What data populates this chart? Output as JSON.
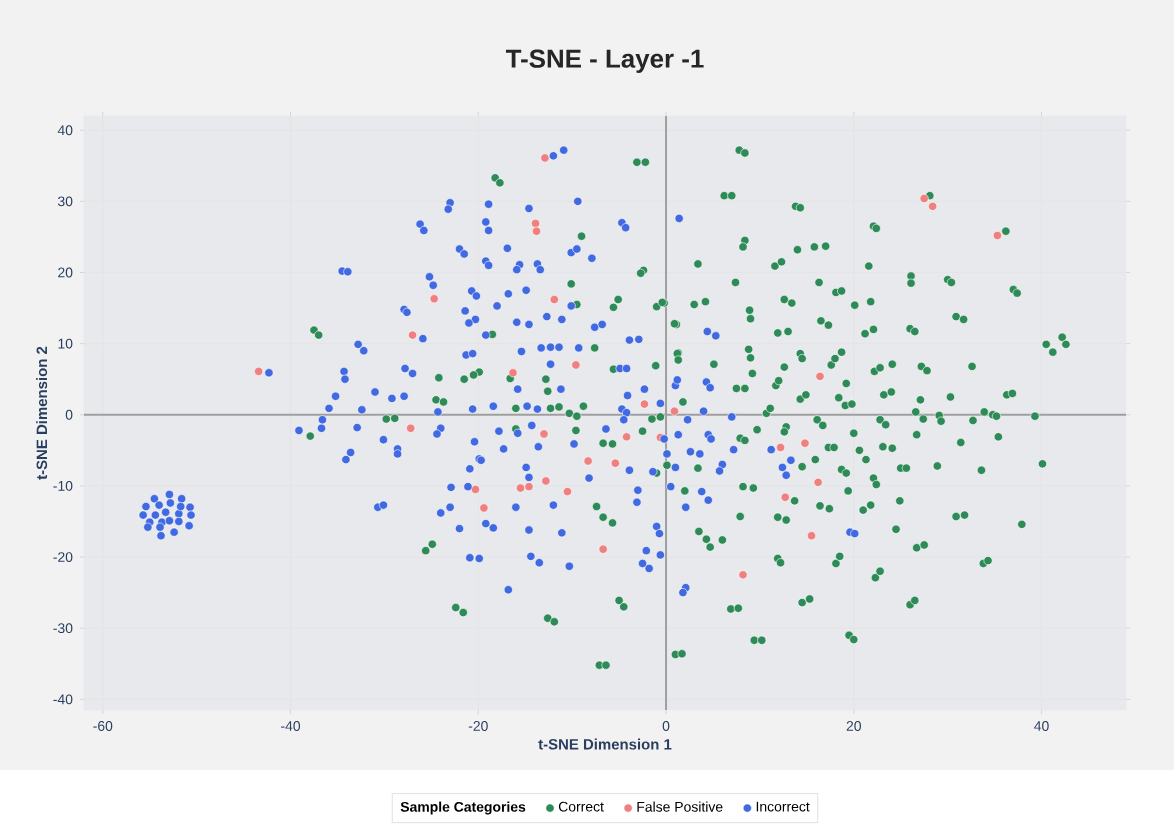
{
  "chart_data": {
    "type": "scatter",
    "title": "T-SNE - Layer -1",
    "xlabel": "t-SNE Dimension 1",
    "ylabel": "t-SNE Dimension 2",
    "legend_title": "Sample Categories",
    "xlim": [
      -62,
      49
    ],
    "ylim": [
      -41.5,
      42
    ],
    "xticks": [
      -60,
      -40,
      -20,
      0,
      20,
      40
    ],
    "yticks": [
      -40,
      -30,
      -20,
      -10,
      0,
      10,
      20,
      30,
      40
    ],
    "grid": true,
    "legend": "bottom",
    "marker": "circle",
    "series": [
      {
        "name": "Correct",
        "color": "#2e8b57",
        "x": [
          -18.2,
          -17.7,
          -3.1,
          -2.2,
          -9,
          -10.1,
          -9.5,
          -2.4,
          -2.7,
          -5.1,
          -5.6,
          -0.2,
          -1,
          1.1,
          -37.5,
          -37,
          -18.5,
          -7.6,
          -1.1,
          1.3,
          -19.9,
          -20.5,
          -21.5,
          -24.2,
          -16.6,
          -12.8,
          -12.6,
          -8.8,
          -10.3,
          -12.3,
          -11.4,
          -16,
          -24.5,
          -23.7,
          -5.6,
          -1.5,
          -0.6,
          -29.8,
          -28.9,
          -9.5,
          7.8,
          8.4,
          6.2,
          7,
          13.8,
          14.3,
          22.1,
          22.4,
          28.1,
          36.2,
          8.4,
          8.2,
          3.4,
          11.6,
          12.3,
          14,
          15.8,
          17,
          21.6,
          7.4,
          16.3,
          18.1,
          18.7,
          26.1,
          26.1,
          30,
          30.4,
          37,
          37.4,
          -0.4,
          3,
          4.2,
          12.6,
          13.4,
          20.1,
          21.8,
          0.9,
          8.9,
          9,
          11.9,
          13,
          16.5,
          17.3,
          21.2,
          22.1,
          26,
          26.5,
          30.9,
          31.7,
          40.5,
          42.2,
          42.6,
          41.2,
          1.2,
          1.3,
          5.1,
          8.8,
          9,
          9.2,
          12.6,
          14.3,
          14.5,
          17.6,
          18,
          18.7,
          19.2,
          22.2,
          22.8,
          24.1,
          27.2,
          27.8,
          32.6,
          11.7,
          12,
          7.5,
          8.4,
          14.3,
          14.9,
          18.4,
          19.1,
          19.8,
          23.2,
          24,
          27.1,
          30.3,
          26.6,
          27.4,
          33.9,
          34.8,
          36.3,
          36.9,
          39.3,
          1.8,
          10.7,
          11.1,
          16.1,
          22.8,
          29.1,
          32.7,
          -37.9,
          -25.6,
          -24.9,
          -22.4,
          -21.6,
          -12.6,
          -11.9,
          -7.1,
          -6.4,
          -5,
          -4.5,
          -7.4,
          -6.7,
          -5.7,
          -6.7,
          -5.7,
          -16,
          -9.6,
          -1,
          0.1,
          1,
          -2.5,
          16.7,
          23.4,
          29.3,
          35.2,
          7.9,
          8.4,
          9.7,
          12.8,
          12.6,
          15.9,
          17.3,
          17.9,
          20.6,
          21.3,
          20,
          23.1,
          24.1,
          26.7,
          31.4,
          35.4,
          14.5,
          18.7,
          19.2,
          22.1,
          22.4,
          25,
          25.6,
          28.9,
          33.6,
          40.1,
          2,
          3.4,
          8.2,
          9.3,
          19.4,
          16.4,
          17.4,
          21,
          21.8,
          24.9,
          7.9,
          11.9,
          12.8,
          13.7,
          24.5,
          30.9,
          31.8,
          37.9,
          3.5,
          4.3,
          4.7,
          6,
          26.7,
          27.5,
          11.9,
          12.2,
          18.1,
          18.5,
          22.3,
          22.8,
          33.8,
          34.3,
          6.9,
          7.7,
          14.5,
          15.3,
          26,
          26.5,
          9.4,
          10.2,
          19.5,
          20,
          1.7
        ],
        "values": [
          33.3,
          32.6,
          35.5,
          35.5,
          25.1,
          18.4,
          15.5,
          20.3,
          19.9,
          16.2,
          15.1,
          15.7,
          15.2,
          12.7,
          11.9,
          11.2,
          11.3,
          9.4,
          6.9,
          8.7,
          6,
          5.6,
          5,
          5.2,
          5.1,
          5,
          3.3,
          1.2,
          0.2,
          0.9,
          1.1,
          0.9,
          2.1,
          1.8,
          6.4,
          -0.6,
          -0.3,
          -0.6,
          -0.5,
          -0.2,
          37.2,
          36.8,
          30.8,
          30.8,
          29.3,
          29.1,
          26.5,
          26.2,
          30.8,
          25.8,
          24.5,
          23.6,
          21.2,
          20.9,
          21.5,
          23.2,
          23.6,
          23.7,
          20.9,
          18.6,
          18.6,
          17.2,
          17.4,
          19.5,
          18.5,
          19,
          18.6,
          17.6,
          17.1,
          15.8,
          15.5,
          15.9,
          16.2,
          15.7,
          15.4,
          15.9,
          12.8,
          14.7,
          13.5,
          11.5,
          11.7,
          13.2,
          12.6,
          11.4,
          12,
          12.1,
          11.7,
          13.8,
          13.4,
          9.9,
          10.9,
          9.9,
          8.8,
          8.6,
          7.7,
          7.1,
          9.2,
          8,
          5.8,
          6.7,
          8.6,
          7.9,
          7,
          7.9,
          8.8,
          4.4,
          6.1,
          6.6,
          7.1,
          6.8,
          6.2,
          6.8,
          4.1,
          4.8,
          3.7,
          3.7,
          2.2,
          2.8,
          2.4,
          1.3,
          1.5,
          2.8,
          3.2,
          2.1,
          2.5,
          0.4,
          -0.6,
          0.4,
          0,
          2.8,
          3,
          -0.2,
          1.8,
          0.2,
          0.9,
          -0.7,
          -0.7,
          -0.1,
          -0.8,
          -3,
          -19.1,
          -18.2,
          -27.1,
          -27.8,
          -28.6,
          -29.1,
          -35.2,
          -35.2,
          -26.1,
          -27,
          -12.9,
          -14.4,
          -15.2,
          -4,
          -4.1,
          -2,
          -2.2,
          -8.2,
          -7.1,
          -33.7,
          -2.3,
          -1.5,
          -1.4,
          -0.9,
          -0.2,
          -3.3,
          -3.6,
          -2.1,
          -1.7,
          -2.4,
          -6.3,
          -4.6,
          -4.6,
          -5,
          -6.3,
          -2.6,
          -4.5,
          -4.7,
          -2.8,
          -3.9,
          -3.1,
          -7.3,
          -7.7,
          -8.2,
          -8.9,
          -9.8,
          -7.5,
          -7.5,
          -7.2,
          -7.8,
          -6.9,
          -10.7,
          -7.5,
          -10.1,
          -10.3,
          -10.7,
          -12.8,
          -13.2,
          -13.4,
          -12.7,
          -12.1,
          -14.3,
          -14.4,
          -14.8,
          -12.1,
          -16.1,
          -14.3,
          -14.1,
          -15.4,
          -16.4,
          -17.5,
          -18.6,
          -17.6,
          -18.7,
          -18.3,
          -20.2,
          -20.8,
          -20.9,
          -19.9,
          -22.9,
          -22,
          -20.9,
          -20.5,
          -27.3,
          -27.2,
          -26.4,
          -25.9,
          -26.7,
          -26.1,
          -31.7,
          -31.7,
          -31,
          -31.6,
          -33.6
        ]
      },
      {
        "name": "False Positive",
        "color": "#f08080",
        "x": [
          -12.9,
          -13.9,
          -13.8,
          -24.7,
          -11.9,
          -27,
          -16.3,
          -9.6,
          -2.3,
          0.9,
          -43.4,
          -27.2,
          27.5,
          28.4,
          35.3,
          16.4,
          -13,
          -8.3,
          -5.4,
          -4.2,
          -12.8,
          -14.6,
          -15.5,
          -10.5,
          -20.3,
          -19.4,
          -6.7,
          -0.6,
          14.8,
          12.2,
          16.2,
          12.7,
          15.5,
          8.2
        ],
        "values": [
          36.1,
          26.9,
          25.8,
          16.3,
          16.2,
          11.2,
          5.9,
          7,
          1.5,
          0.5,
          6.1,
          -1.9,
          30.4,
          29.3,
          25.2,
          5.4,
          -2.7,
          -6.5,
          -6.8,
          -3.1,
          -9.3,
          -10.1,
          -10.3,
          -10.8,
          -10.5,
          -13.1,
          -18.9,
          -3.2,
          -4,
          -4.6,
          -9.5,
          -11.6,
          -17,
          -22.5
        ]
      },
      {
        "name": "Incorrect",
        "color": "#4169e1",
        "x": [
          -12,
          -10.9,
          -23,
          -23.2,
          -18.9,
          -14.6,
          -9.4,
          -26.2,
          -25.8,
          -19.2,
          -18.9,
          -4.7,
          -4.3,
          1.4,
          -22,
          -21.5,
          -16.9,
          -10.1,
          -9.5,
          -7.9,
          -19.2,
          -18.9,
          -15.6,
          -15.9,
          -13.7,
          -13.4,
          -34.5,
          -33.9,
          -25.2,
          -24.8,
          -20.7,
          -20.2,
          -16.8,
          -14.9,
          -18,
          -10.1,
          -21.4,
          -20.3,
          -21,
          -27.9,
          -27.6,
          -15.9,
          -14.6,
          -12.7,
          -11.1,
          -7.6,
          -6.8,
          -19.2,
          -25.9,
          -32.8,
          -32.2,
          -3.9,
          -2.9,
          -21.3,
          -20.6,
          -15.4,
          -13.3,
          -12.3,
          -11.4,
          -9.3,
          -27.8,
          -27,
          -34.3,
          -34.2,
          -42.3,
          -12.3,
          -4.9,
          -4.2,
          -2.3,
          1,
          -15.8,
          -11.2,
          -4.1,
          -31,
          -29.2,
          -27.9,
          -35.2,
          -35.9,
          -32.4,
          -24.3,
          -20.6,
          -18.4,
          -14.8,
          -13.7,
          -4.7,
          -4.2,
          -0.6,
          4.4,
          5.3,
          1.2,
          4.3,
          4.7,
          4,
          7,
          2.3,
          -39.1,
          -36.7,
          -36.6,
          -32.9,
          -33.6,
          -34.1,
          -30.1,
          -28.6,
          -28.6,
          -24,
          -24.4,
          -20.4,
          -19.9,
          -19.7,
          -20.9,
          -22.9,
          -21.1,
          -24,
          -23,
          -30.7,
          -30.1,
          -22,
          -19.2,
          -18.4,
          -20.9,
          -19.9,
          -16.8,
          -14.4,
          -13.5,
          -10.3,
          -11.1,
          -14.6,
          -16,
          -12,
          -14.9,
          -14.6,
          -17.3,
          -17.8,
          -15.8,
          -14.3,
          -13.6,
          -9.8,
          -8.2,
          -6.4,
          -4.5,
          -3.9,
          -3,
          -3.1,
          -2.1,
          -1.8,
          -2.5,
          -1,
          -0.7,
          0.5,
          0.1,
          1,
          -0.2,
          -1.4,
          1.3,
          4.5,
          4.8,
          2.6,
          3.6,
          6,
          5.7,
          7.2,
          11.2,
          13.3,
          12.4,
          12.8,
          3.8,
          4.5,
          2.1,
          19.6,
          20.1,
          2.1,
          1.8,
          -0.6,
          -54.5,
          -52.9,
          -51.6,
          -55.4,
          -54,
          -52.8,
          -50.7,
          -55.7,
          -54.4,
          -53.3,
          -51.9,
          -50.6,
          -55,
          -53.7,
          -52.9,
          -51.9,
          -55.2,
          -53.9,
          -52.4,
          -50.8,
          -53.8,
          -51.7
        ],
        "values": [
          36.4,
          37.2,
          29.8,
          28.9,
          29.6,
          29,
          30,
          26.8,
          25.9,
          27.1,
          25.9,
          27,
          26.3,
          27.6,
          23.3,
          22.6,
          23.4,
          22.8,
          23.3,
          22,
          21.6,
          21,
          21.1,
          20.4,
          21.2,
          20.4,
          20.2,
          20.1,
          19.4,
          18.2,
          17.4,
          16.7,
          17,
          17.5,
          15.3,
          15.3,
          14.6,
          13.4,
          12.9,
          14.8,
          14.4,
          13,
          12.7,
          13.8,
          13.4,
          12.3,
          12.7,
          11.2,
          10.7,
          9.9,
          9,
          10.5,
          10.6,
          8.4,
          8.6,
          8.9,
          9.4,
          9.5,
          9.5,
          9.4,
          6.5,
          5.8,
          6.1,
          5,
          5.9,
          7.1,
          6.5,
          6.5,
          3.6,
          4.1,
          3.6,
          3.6,
          2.7,
          3.2,
          2.3,
          2.6,
          2.6,
          0.9,
          0.7,
          0.4,
          0.8,
          1.2,
          1.2,
          0.8,
          0.8,
          0.3,
          1.6,
          11.7,
          11.1,
          4.9,
          4.6,
          3.8,
          0.5,
          -0.3,
          -0.7,
          -2.2,
          -1.9,
          -0.7,
          -1.8,
          -5.3,
          -6.3,
          -3.5,
          -4.8,
          -5.5,
          -1.9,
          -2.7,
          -3.8,
          -6.2,
          -6.4,
          -7.6,
          -10.2,
          -10.1,
          -13.8,
          -13,
          -13,
          -12.7,
          -16,
          -15.3,
          -15.9,
          -20.1,
          -20.2,
          -24.6,
          -19.9,
          -20.8,
          -21.3,
          -16.6,
          -16.2,
          -13,
          -12.7,
          -7.4,
          -8.8,
          -4.8,
          -2.3,
          -2.6,
          -1.5,
          -4.5,
          -4.1,
          -8.9,
          -2,
          -0.7,
          -7.8,
          -10.6,
          -12.3,
          -19.1,
          -21.6,
          -20.9,
          -15.7,
          -16.7,
          -10.1,
          -5.5,
          -7.4,
          -3.4,
          -8,
          -2.8,
          -2.8,
          -3.4,
          -5.2,
          -5.5,
          -7,
          -7.9,
          -4.9,
          -4.9,
          -6.4,
          -7.4,
          -8.5,
          -10.8,
          -12,
          -13,
          -16.5,
          -16.7,
          -24.3,
          -25,
          -19.7,
          -11.8,
          -11.2,
          -11.8,
          -12.9,
          -12.7,
          -12.4,
          -13,
          -14.1,
          -14.1,
          -13.7,
          -13.9,
          -14.1,
          -15.1,
          -15.1,
          -14.9,
          -15,
          -15.8,
          -15.8,
          -16.5,
          -15.6,
          -17,
          -12.9
        ]
      }
    ]
  }
}
